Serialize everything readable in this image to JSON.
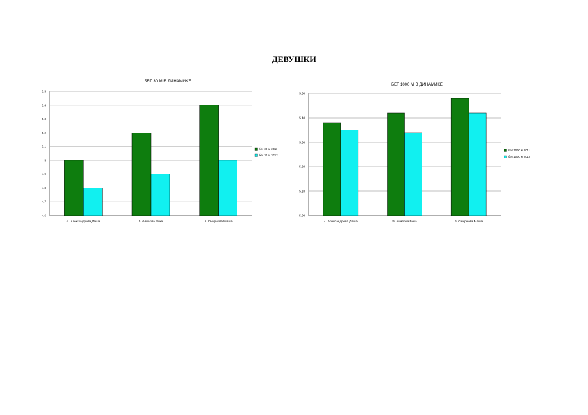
{
  "page": {
    "heading": "ДЕВУШКИ"
  },
  "colors": {
    "series1": "#0e7d0e",
    "series2": "#11f0f0",
    "grid": "#808080",
    "axis": "#000000"
  },
  "chart_data": [
    {
      "type": "bar",
      "title": "БЕГ 30 М В ДИНАМИКЕ",
      "xlabel": "",
      "ylabel": "",
      "categories": [
        "4. Александрова Даша",
        "5. Авилова Вика",
        "6. Смирнова Маша"
      ],
      "series": [
        {
          "name": "бег 30 м 2011",
          "values": [
            5.0,
            5.2,
            5.4
          ]
        },
        {
          "name": "бег 30 м 2012",
          "values": [
            4.8,
            4.9,
            5.0
          ]
        }
      ],
      "ylim": [
        4.6,
        5.5
      ],
      "yticks": [
        "4.6",
        "4.7",
        "4.8",
        "4.9",
        "5",
        "5.1",
        "5.2",
        "5.3",
        "5.4",
        "5.5"
      ],
      "grid": true,
      "legend": "right"
    },
    {
      "type": "bar",
      "title": "БЕГ 1000 М В ДИНАМИКЕ",
      "xlabel": "",
      "ylabel": "",
      "categories": [
        "4. Александрова Даша",
        "5. Авилова Вика",
        "6. Смирнова Маша"
      ],
      "series": [
        {
          "name": "бег 1000 м 2011",
          "values": [
            5.38,
            5.42,
            5.48
          ]
        },
        {
          "name": "бег 1000 м 2012",
          "values": [
            5.35,
            5.34,
            5.42
          ]
        }
      ],
      "ylim": [
        5.0,
        5.5
      ],
      "yticks": [
        "5.00",
        "5.10",
        "5.20",
        "5.30",
        "5.40",
        "5.50"
      ],
      "grid": true,
      "legend": "right"
    }
  ]
}
